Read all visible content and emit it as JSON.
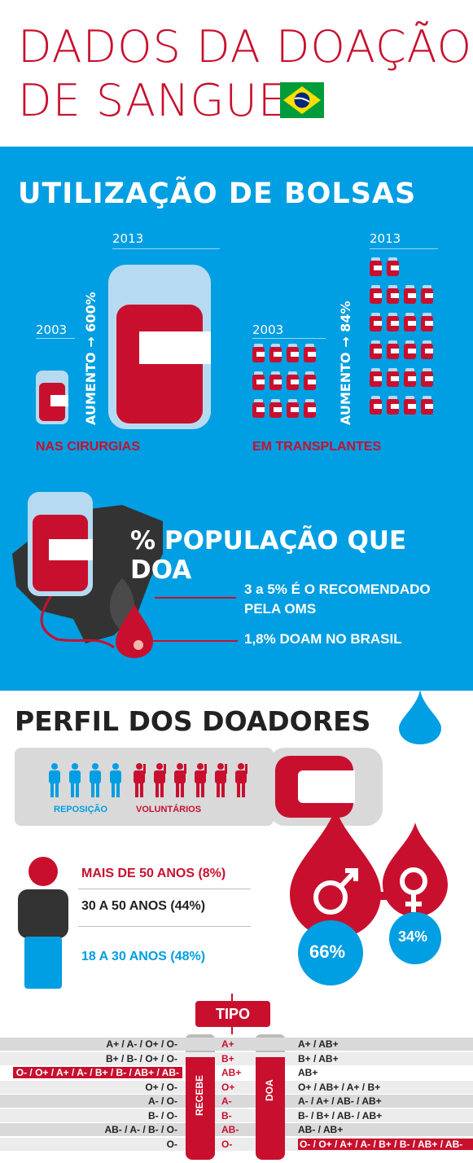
{
  "header": {
    "title_line1": "DADOS DA DOAÇÃO",
    "title_line2": "DE SANGUE",
    "flag_icon": "brazil-flag"
  },
  "bolsas": {
    "title": "UTILIZAÇÃO DE BOLSAS",
    "cirurgias": {
      "year_before": "2003",
      "year_after": "2013",
      "increase_label": "AUMENTO → 600%",
      "label": "NAS CIRURGIAS"
    },
    "transplantes": {
      "year_before": "2003",
      "year_after": "2013",
      "increase_label": "AUMENTO → 84%",
      "label": "EM TRANSPLANTES"
    }
  },
  "populacao": {
    "title": "% POPULAÇÃO QUE DOA",
    "recommended_line1": "3 a 5% É O RECOMENDADO",
    "recommended_line2": "PELA OMS",
    "brazil_label": "1,8% DOAM NO BRASIL"
  },
  "perfil": {
    "title": "PERFIL DOS DOADORES",
    "reposicao_label": "REPOSIÇÃO",
    "voluntarios_label": "VOLUNTÁRIOS",
    "reposicao_count": 4,
    "voluntarios_count": 6,
    "age_groups": [
      "MAIS DE 50 ANOS (8%)",
      "30 A 50 ANOS (44%)",
      "18 A 30 ANOS (48%)"
    ],
    "male_pct": "66%",
    "female_pct": "34%"
  },
  "tipo": {
    "title": "TIPO",
    "recebe_label": "RECEBE",
    "doa_label": "DOA",
    "rows": [
      {
        "recebe": "A+ / A- / O+ / O-",
        "tipo": "A+",
        "doa": "A+ / AB+",
        "highlight": false
      },
      {
        "recebe": "B+ / B- / O+ / O-",
        "tipo": "B+",
        "doa": "B+ / AB+",
        "highlight": false
      },
      {
        "recebe": "O- / O+ / A+ / A- / B+ / B- / AB+ / AB-",
        "tipo": "AB+",
        "doa": "AB+",
        "highlight": true
      },
      {
        "recebe": "O+ / O-",
        "tipo": "O+",
        "doa": "O+ / AB+ / A+ / B+",
        "highlight": false
      },
      {
        "recebe": "A- / O-",
        "tipo": "A-",
        "doa": "A- / A+ / AB- / AB+",
        "highlight": false
      },
      {
        "recebe": "B- / O-",
        "tipo": "B-",
        "doa": "B- / B+ / AB- / AB+",
        "highlight": false
      },
      {
        "recebe": "AB- / A- / B- / O-",
        "tipo": "AB-",
        "doa": "AB- / AB+",
        "highlight": false
      },
      {
        "recebe": "O-",
        "tipo": "O-",
        "doa": "O- / O+ / A+ / A- / B+ / B- / AB+ / AB-",
        "highlight": true
      }
    ]
  },
  "colors": {
    "red": "#c8102e",
    "blue": "#009ee2",
    "dark": "#333333"
  }
}
